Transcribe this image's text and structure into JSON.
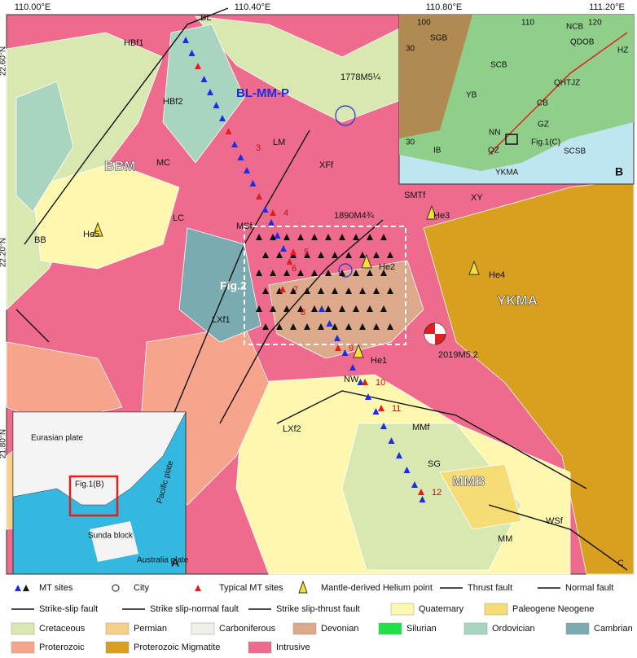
{
  "axes": {
    "top": [
      "110.00°E",
      "110.40°E",
      "110.80°E",
      "111.20°E"
    ],
    "left": [
      "22.60°N",
      "22.20°N",
      "21.80°N"
    ]
  },
  "map_labels": [
    "BL",
    "HBf1",
    "HBf2",
    "BL-MM-P",
    "1778M5¼",
    "LM",
    "3",
    "BBM",
    "MC",
    "XFf",
    "LC",
    "4",
    "SMTf",
    "XY",
    "He3",
    "He5",
    "BB",
    "MSf",
    "1890M4¾",
    "5",
    "He2",
    "He4",
    "Fig.2",
    "6",
    "7",
    "8",
    "YKMA",
    "LXf1",
    "9",
    "He1",
    "2019M5.2",
    "NW",
    "10",
    "LXf2",
    "11",
    "MMf",
    "SG",
    "MMB",
    "12",
    "MM",
    "WSf",
    "C"
  ],
  "inset_b": [
    "100",
    "110",
    "120",
    "SGB",
    "NCB",
    "QDOB",
    "HZ",
    "30",
    "SCB",
    "YB",
    "CB",
    "QHTJZ",
    "NN",
    "GZ",
    "IB",
    "30",
    "QZ",
    "Fig.1(C)",
    "SCSB",
    "YKMA",
    "B"
  ],
  "inset_a": [
    "Eurasian plate",
    "Fig.1(B)",
    "Pacific plate",
    "Sunda block",
    "Australia plate",
    "A"
  ],
  "legend": [
    {
      "label": "MT sites"
    },
    {
      "label": "City"
    },
    {
      "label": "Typical MT sites"
    },
    {
      "label": "Mantle-derived Helium point"
    },
    {
      "label": "Thrust fault"
    },
    {
      "label": "Normal fault"
    },
    {
      "label": "Strike-slip fault"
    },
    {
      "label": "Strike slip-normal fault"
    },
    {
      "label": "Strike slip-thrust fault"
    },
    {
      "label": "Quaternary",
      "color": "#fdf7b0"
    },
    {
      "label": "Paleogene Neogene",
      "color": "#f6dc74"
    },
    {
      "label": "Cretaceous",
      "color": "#d9e8b0"
    },
    {
      "label": "Permian",
      "color": "#f8cf8a"
    },
    {
      "label": "Carboniferous",
      "color": "#f0efe8"
    },
    {
      "label": "Devonian",
      "color": "#dca98a"
    },
    {
      "label": "Silurian",
      "color": "#22e04a"
    },
    {
      "label": "Ordovician",
      "color": "#a9d5c0"
    },
    {
      "label": "Cambrian",
      "color": "#7aabb0"
    },
    {
      "label": "Proterozoic",
      "color": "#f6a48c"
    },
    {
      "label": "Proterozoic Migmatite",
      "color": "#d9a020"
    },
    {
      "label": "Intrusive",
      "color": "#ee6b8e"
    }
  ]
}
